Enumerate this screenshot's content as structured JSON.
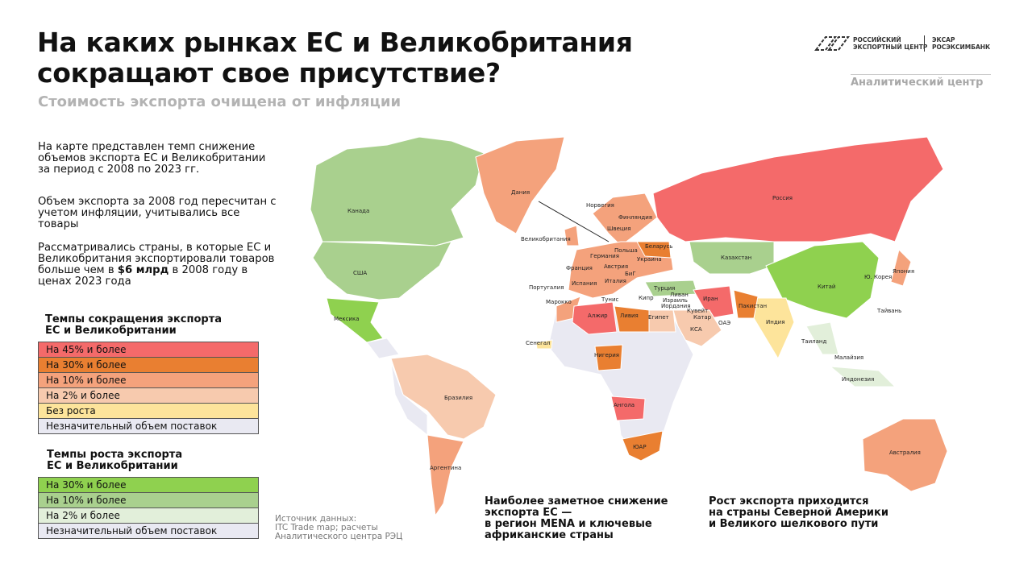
{
  "header": {
    "title": [
      "На каких рынках ЕС и Великобритания",
      "сокращают свое присутствие?"
    ],
    "subtitle": "Стоимость экспорта очищена от инфляции",
    "logo_left": [
      "РОССИЙСКИЙ",
      "ЭКСПОРТНЫЙ ЦЕНТР"
    ],
    "logo_right": [
      "ЭКСАР",
      "РОСЭКСИМБАНК"
    ],
    "department": "Аналитический центр"
  },
  "intro": [
    "На карте представлен темп снижение объемов экспорта ЕС и Великобритании за период с 2008 по 2023 гг.",
    "Объем экспорта за 2008 год пересчитан с учетом инфляции, учитывались все товары",
    {
      "before": "Рассматривались страны, в которые ЕС и Великобритания экспортировали товаров больше чем в",
      "bold": "$6 млрд",
      "after": "в 2008 году в ценах 2023 года"
    }
  ],
  "legend_decline": {
    "title": [
      "Темпы сокращения экспорта",
      "ЕС и Великобритании"
    ],
    "items": [
      {
        "label": "На 45% и более",
        "color": "#f46a6a"
      },
      {
        "label": "На 30% и более",
        "color": "#e97f31"
      },
      {
        "label": "На 10% и более",
        "color": "#f4a27c"
      },
      {
        "label": "На 2% и более",
        "color": "#f7caae"
      },
      {
        "label": "Без роста",
        "color": "#fde49b"
      },
      {
        "label": "Незначительный объем поставок",
        "color": "#e9e9f2"
      }
    ]
  },
  "legend_growth": {
    "title": [
      "Темпы роста экспорта",
      "ЕС и Великобритании"
    ],
    "items": [
      {
        "label": "На 30% и более",
        "color": "#8fd14f"
      },
      {
        "label": "На 10% и более",
        "color": "#a9d08e"
      },
      {
        "label": "На 2% и более",
        "color": "#e2efda"
      },
      {
        "label": "Незначительный объем поставок",
        "color": "#e9e9f2"
      }
    ]
  },
  "source": [
    "Источник данных:",
    "ITC Trade map; расчеты",
    "Аналитического центра РЭЦ"
  ],
  "notes": [
    [
      "Наиболее заметное снижение",
      "экспорта ЕС —",
      "в регион MENA и ключевые",
      "африканские страны"
    ],
    [
      "Рост экспорта приходится",
      "на страны Северной Америки",
      "и Великого шелкового пути"
    ]
  ],
  "countries": [
    "Дания",
    "Норвегия",
    "Финляндия",
    "Швеция",
    "Великобритания",
    "Беларусь",
    "Польша",
    "Украина",
    "Казахстан",
    "Россия",
    "Германия",
    "Франция",
    "Австрия",
    "Италия",
    "БиГ",
    "Испания",
    "Португалия",
    "Турция",
    "Ливан",
    "Израиль",
    "Иордания",
    "Кипр",
    "Тунис",
    "Марокко",
    "Иран",
    "Пакистан",
    "Кувейт",
    "Катар",
    "ОАЭ",
    "КСА",
    "Алжир",
    "Ливия",
    "Египет",
    "Индия",
    "Китай",
    "Япония",
    "Ю. Корея",
    "Тайвань",
    "Таиланд",
    "Малайзия",
    "Индонезия",
    "Сенегал",
    "Нигерия",
    "Ангола",
    "ЮАР",
    "Австралия",
    "Канада",
    "США",
    "Мексика",
    "Бразилия",
    "Аргентина"
  ]
}
